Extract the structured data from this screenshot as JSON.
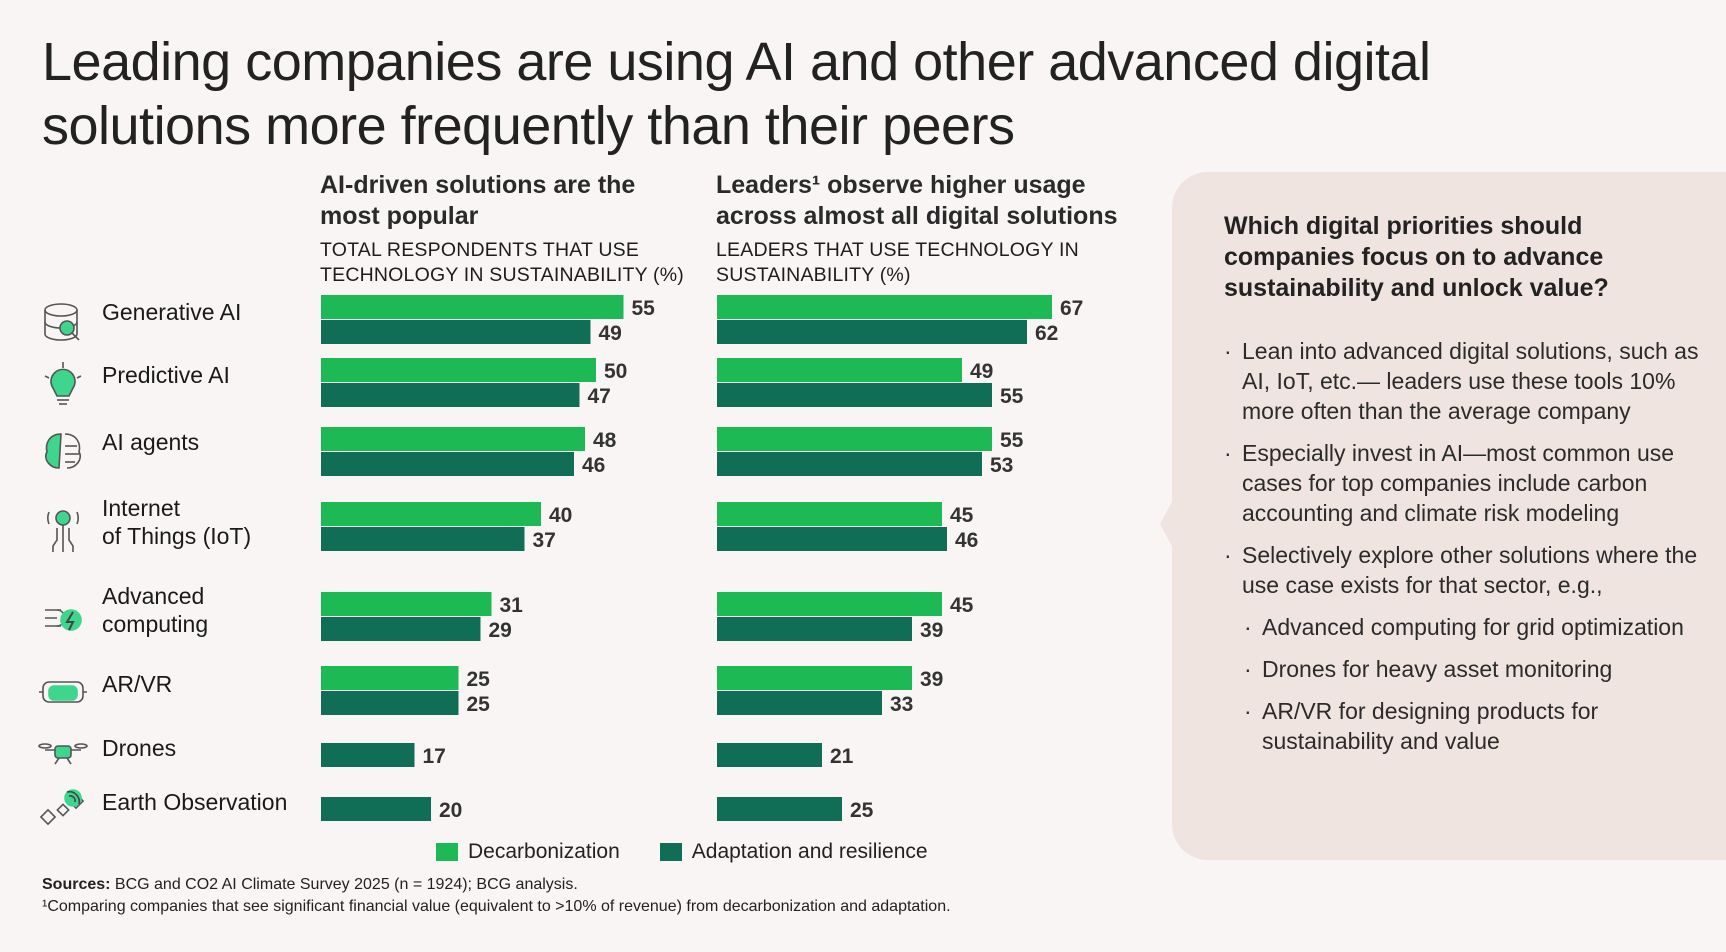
{
  "title": "Leading companies are using AI and other advanced digital solutions more frequently than their peers",
  "left_chart": {
    "heading": "AI-driven solutions are the most popular",
    "subheading": "TOTAL RESPONDENTS THAT USE TECHNOLOGY IN SUSTAINABILITY (%)"
  },
  "right_chart": {
    "heading": "Leaders¹ observe higher usage across almost all digital solutions",
    "subheading": "LEADERS THAT USE TECHNOLOGY IN SUSTAINABILITY (%)"
  },
  "chart_data": [
    {
      "type": "bar",
      "title": "AI-driven solutions are the most popular",
      "xlabel": "TOTAL RESPONDENTS THAT USE TECHNOLOGY IN SUSTAINABILITY (%)",
      "categories": [
        "Generative AI",
        "Predictive AI",
        "AI agents",
        "Internet of Things (IoT)",
        "Advanced computing",
        "AR/VR",
        "Drones",
        "Earth Observation"
      ],
      "series": [
        {
          "name": "Decarbonization",
          "values": [
            55,
            50,
            48,
            40,
            31,
            25,
            null,
            null
          ]
        },
        {
          "name": "Adaptation and resilience",
          "values": [
            49,
            47,
            46,
            37,
            29,
            25,
            17,
            20
          ]
        }
      ],
      "orientation": "horizontal",
      "xlim": [
        0,
        70
      ]
    },
    {
      "type": "bar",
      "title": "Leaders¹ observe higher usage across almost all digital solutions",
      "xlabel": "LEADERS THAT USE TECHNOLOGY IN SUSTAINABILITY (%)",
      "categories": [
        "Generative AI",
        "Predictive AI",
        "AI agents",
        "Internet of Things (IoT)",
        "Advanced computing",
        "AR/VR",
        "Drones",
        "Earth Observation"
      ],
      "series": [
        {
          "name": "Decarbonization",
          "values": [
            67,
            49,
            55,
            45,
            45,
            39,
            null,
            null
          ]
        },
        {
          "name": "Adaptation and resilience",
          "values": [
            62,
            55,
            53,
            46,
            39,
            33,
            21,
            25
          ]
        }
      ],
      "orientation": "horizontal",
      "xlim": [
        0,
        70
      ]
    }
  ],
  "categories": [
    {
      "lines": [
        "Generative AI"
      ],
      "icon": "database-search-icon"
    },
    {
      "lines": [
        "Predictive AI"
      ],
      "icon": "lightbulb-icon"
    },
    {
      "lines": [
        "AI agents"
      ],
      "icon": "brain-circuit-icon"
    },
    {
      "lines": [
        "Internet",
        "of Things (IoT)"
      ],
      "icon": "iot-antenna-icon"
    },
    {
      "lines": [
        "Advanced",
        "computing"
      ],
      "icon": "computing-bolt-icon"
    },
    {
      "lines": [
        "AR/VR"
      ],
      "icon": "vr-headset-icon"
    },
    {
      "lines": [
        "Drones"
      ],
      "icon": "drone-icon"
    },
    {
      "lines": [
        "Earth Observation"
      ],
      "icon": "satellite-icon"
    }
  ],
  "colors": {
    "decarbonization": "#1db954",
    "adaptation": "#0f6e55",
    "panel": "#efe4df",
    "icon_accent": "#3dd68c"
  },
  "legend": {
    "decarbonization": "Decarbonization",
    "adaptation": "Adaptation and resilience"
  },
  "sources": {
    "label": "Sources:",
    "text": " BCG and CO2 AI Climate Survey 2025 (n = 1924); BCG analysis.",
    "footnote": "¹Comparing companies that see significant financial value (equivalent to >10% of revenue) from decarbonization and adaptation."
  },
  "panel": {
    "title": "Which digital priorities should companies focus on to advance sustainability and unlock value?",
    "bullets": [
      "Lean into advanced digital solutions, such as AI, IoT, etc.— leaders use these tools 10% more often than the average company",
      "Especially invest in AI—most common use cases for top companies include carbon accounting and climate risk modeling",
      "Selectively explore other solutions where the use case exists for that sector, e.g.,"
    ],
    "sub_bullets": [
      "Advanced computing for grid optimization",
      "Drones for heavy asset monitoring",
      "AR/VR for designing products for sustainability and value"
    ]
  }
}
